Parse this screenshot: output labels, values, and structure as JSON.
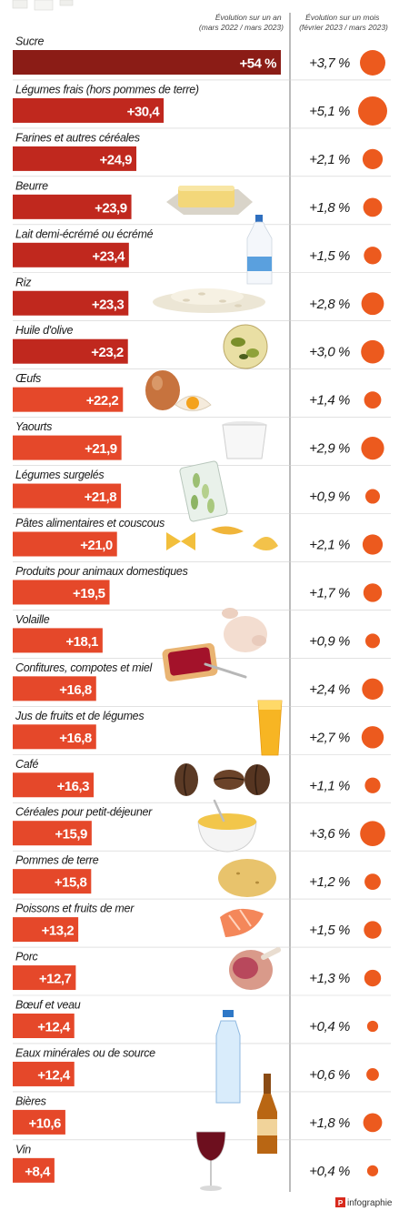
{
  "header": {
    "year_col": [
      "Évolution sur un an",
      "(mars 2022 / mars 2023)"
    ],
    "month_col": [
      "Évolution sur un mois",
      "(février 2023 / mars 2023)"
    ]
  },
  "chart_data": {
    "type": "bar",
    "categories": [
      "Sucre",
      "Légumes frais (hors pommes de terre)",
      "Farines et autres céréales",
      "Beurre",
      "Lait demi-écrémé ou écrémé",
      "Riz",
      "Huile d'olive",
      "Œufs",
      "Yaourts",
      "Légumes surgelés",
      "Pâtes alimentaires et couscous",
      "Produits pour animaux domestiques",
      "Volaille",
      "Confitures, compotes et miel",
      "Jus de fruits et de légumes",
      "Café",
      "Céréales pour petit-déjeuner",
      "Pommes de terre",
      "Poissons et fruits de mer",
      "Porc",
      "Bœuf et veau",
      "Eaux minérales ou de source",
      "Bières",
      "Vin"
    ],
    "series": [
      {
        "name": "Évolution sur un an (mars 2022 / mars 2023)",
        "values": [
          54,
          30.4,
          24.9,
          23.9,
          23.4,
          23.3,
          23.2,
          22.2,
          21.9,
          21.8,
          21.0,
          19.5,
          18.1,
          16.8,
          16.8,
          16.3,
          15.9,
          15.8,
          13.2,
          12.7,
          12.4,
          12.4,
          10.6,
          8.4
        ],
        "labels": [
          "+54 %",
          "+30,4",
          "+24,9",
          "+23,9",
          "+23,4",
          "+23,3",
          "+23,2",
          "+22,2",
          "+21,9",
          "+21,8",
          "+21,0",
          "+19,5",
          "+18,1",
          "+16,8",
          "+16,8",
          "+16,3",
          "+15,9",
          "+15,8",
          "+13,2",
          "+12,7",
          "+12,4",
          "+12,4",
          "+10,6",
          "+8,4"
        ]
      },
      {
        "name": "Évolution sur un mois (février 2023 / mars 2023)",
        "values": [
          3.7,
          5.1,
          2.1,
          1.8,
          1.5,
          2.8,
          3.0,
          1.4,
          2.9,
          0.9,
          2.1,
          1.7,
          0.9,
          2.4,
          2.7,
          1.1,
          3.6,
          1.2,
          1.5,
          1.3,
          0.4,
          0.6,
          1.8,
          0.4
        ],
        "labels": [
          "+3,7 %",
          "+5,1 %",
          "+2,1 %",
          "+1,8 %",
          "+1,5 %",
          "+2,8 %",
          "+3,0 %",
          "+1,4 %",
          "+2,9 %",
          "+0,9 %",
          "+2,1 %",
          "+1,7 %",
          "+0,9 %",
          "+2,4 %",
          "+2,7 %",
          "+1,1 %",
          "+3,6 %",
          "+1,2 %",
          "+1,5 %",
          "+1,3 %",
          "+0,4 %",
          "+0,6 %",
          "+1,8 %",
          "+0,4 %"
        ]
      }
    ],
    "grid": false,
    "colors": {
      "bar_dark": "#8b1c16",
      "bar_mid": "#c0281e",
      "bar_light": "#e5482a",
      "dot": "#ec5a1e"
    }
  },
  "icons": [
    "sugar-icon",
    "butter-icon",
    "milk-bottle-icon",
    "rice-icon",
    "olive-oil-icon",
    "egg-icon",
    "yogurt-icon",
    "frozen-vegetables-icon",
    "pasta-icon",
    "chicken-icon",
    "jam-toast-icon",
    "juice-glass-icon",
    "coffee-bean-icon",
    "cereal-bowl-icon",
    "potato-icon",
    "salmon-icon",
    "ham-icon",
    "water-bottle-icon",
    "beer-bottle-icon",
    "wine-glass-icon"
  ],
  "footer": {
    "brand": "infographie"
  }
}
